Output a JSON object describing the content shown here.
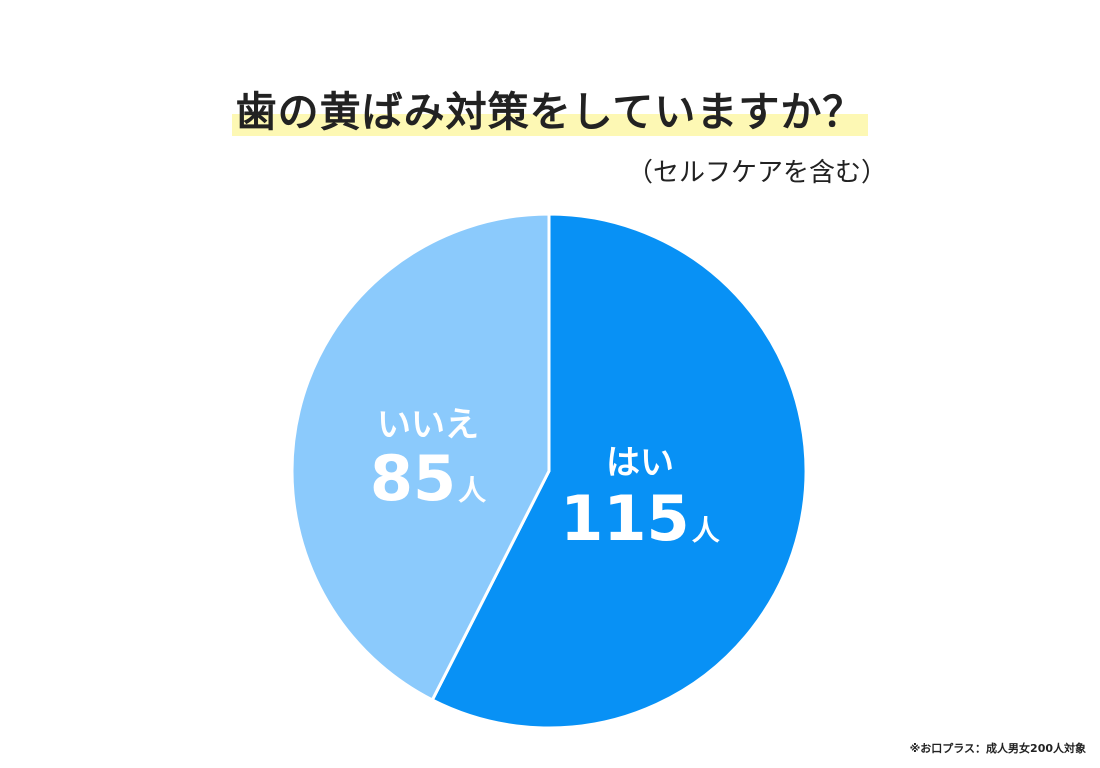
{
  "chart_data": {
    "type": "pie",
    "title": "歯の黄ばみ対策をしていますか？",
    "subtitle": "（セルフケアを含む）",
    "unit": "人",
    "slices": [
      {
        "label": "はい",
        "value": 115,
        "value_text": "115",
        "color": "#0891f5"
      },
      {
        "label": "いいえ",
        "value": 85,
        "value_text": "85",
        "color": "#8bcafc"
      }
    ],
    "start_angle_deg": 0,
    "direction": "clockwise"
  },
  "note": "※お口プラス：成人男女200人対象"
}
